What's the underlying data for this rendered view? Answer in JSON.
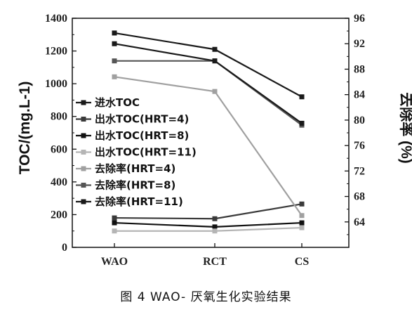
{
  "caption": "图 4 WAO- 厌氧生化实验结果",
  "chart_data": {
    "type": "line",
    "categories": [
      "WAO",
      "RCT",
      "CS"
    ],
    "ylabel_left": "TOC/(mg.L-1)",
    "ylabel_right": "去除率 (%)",
    "yleft_lim": [
      0,
      1400
    ],
    "yleft_ticks": [
      "0",
      "200",
      "400",
      "600",
      "800",
      "1000",
      "1200",
      "1400"
    ],
    "yright_lim": [
      60,
      96
    ],
    "yright_ticks": [
      "64",
      "68",
      "72",
      "76",
      "80",
      "84",
      "88",
      "92",
      "96"
    ],
    "grid": false,
    "legend_position": "left-middle",
    "series": [
      {
        "name": "进水TOC",
        "axis": "left",
        "values": [
          1310,
          1210,
          920
        ],
        "color": "#1a1a1a",
        "marker": "square"
      },
      {
        "name": "出水TOC(HRT=4)",
        "axis": "left",
        "values": [
          180,
          175,
          265
        ],
        "color": "#3a3a3a",
        "marker": "square"
      },
      {
        "name": "出水TOC(HRT=8)",
        "axis": "left",
        "values": [
          150,
          125,
          150
        ],
        "color": "#111111",
        "marker": "square"
      },
      {
        "name": "出水TOC(HRT=11)",
        "axis": "left",
        "values": [
          100,
          100,
          120
        ],
        "color": "#b5b5b5",
        "marker": "square"
      },
      {
        "name": "去除率(HRT=4)",
        "axis": "right",
        "values": [
          86.8,
          84.5,
          65.0
        ],
        "color": "#a0a0a0",
        "marker": "square"
      },
      {
        "name": "去除率(HRT=8)",
        "axis": "right",
        "values": [
          89.3,
          89.3,
          79.2
        ],
        "color": "#555555",
        "marker": "square"
      },
      {
        "name": "去除率(HRT=11)",
        "axis": "right",
        "values": [
          92.0,
          89.3,
          79.5
        ],
        "color": "#1a1a1a",
        "marker": "square"
      }
    ]
  }
}
